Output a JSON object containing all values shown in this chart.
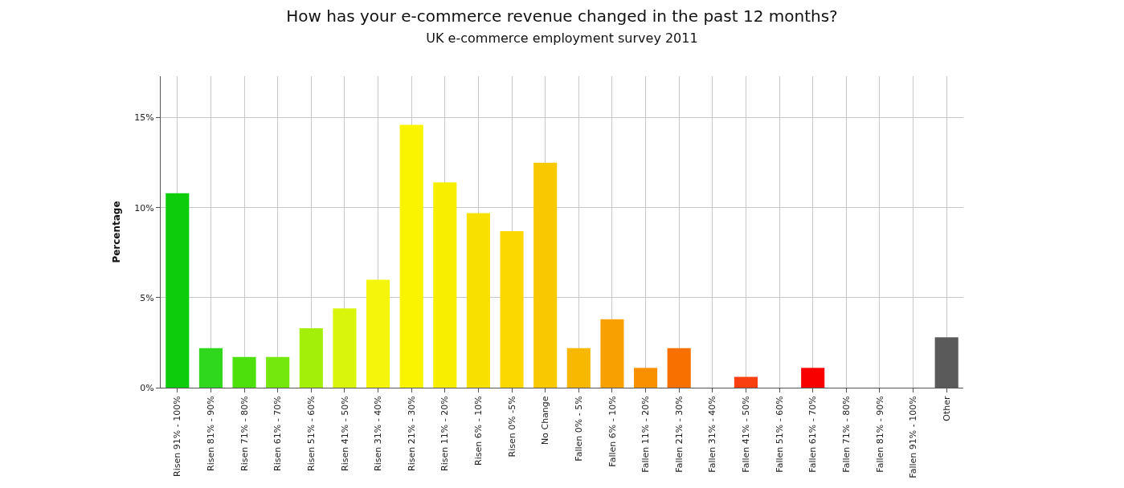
{
  "chart_data": {
    "type": "bar",
    "title": "How has your e-commerce revenue changed in the past 12 months?",
    "subtitle": "UK e-commerce employment survey 2011",
    "ylabel": "Percentage",
    "categories": [
      "Risen 91% - 100%",
      "Risen 81% - 90%",
      "Risen 71% - 80%",
      "Risen 61% - 70%",
      "Risen 51% - 60%",
      "Risen 41% - 50%",
      "Risen 31% - 40%",
      "Risen 21% - 30%",
      "Risen 11% - 20%",
      "Risen 6% - 10%",
      "Risen 0% -5%",
      "No Change",
      "Fallen 0% - 5%",
      "Fallen 6% - 10%",
      "Fallen 11% - 20%",
      "Fallen 21% - 30%",
      "Fallen 31% - 40%",
      "Fallen 41% - 50%",
      "Fallen 51% - 60%",
      "Fallen 61% - 70%",
      "Fallen 71% - 80%",
      "Fallen 81% - 90%",
      "Fallen 91% - 100%",
      "Other"
    ],
    "values": [
      10.8,
      2.2,
      1.7,
      1.7,
      3.3,
      4.4,
      6.0,
      14.6,
      11.4,
      9.7,
      8.7,
      12.5,
      2.2,
      3.8,
      1.1,
      2.2,
      0,
      0.6,
      0,
      1.1,
      0,
      0,
      0,
      2.8
    ],
    "colors": [
      "#0ccc0c",
      "#2fd81c",
      "#4ee00c",
      "#74e80c",
      "#a4ef0a",
      "#d8f50a",
      "#f5f50c",
      "#f9f400",
      "#f8ee00",
      "#f8e000",
      "#fad800",
      "#f8c800",
      "#f8b800",
      "#f8a000",
      "#f89000",
      "#f87000",
      "#f85000",
      "#f84010",
      "#f83000",
      "#f80000",
      "#f80000",
      "#f80000",
      "#f80000",
      "#5a5a5a"
    ],
    "ylim": [
      0,
      17.3
    ],
    "yticks": [
      {
        "value": 0,
        "label": "0%"
      },
      {
        "value": 5,
        "label": "5%"
      },
      {
        "value": 10,
        "label": "10%"
      },
      {
        "value": 15,
        "label": "15%"
      }
    ],
    "grid": true
  }
}
